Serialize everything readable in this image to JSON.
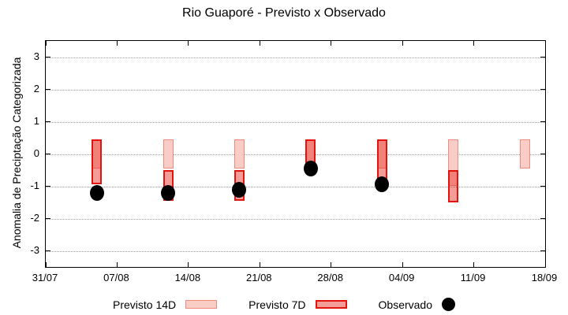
{
  "chart_data": {
    "type": "bar",
    "subtype": "range-bars-with-scatter",
    "title": "Rio Guaporé - Previsto x Observado",
    "xlabel": "",
    "ylabel": "Anomalia de Preciptação Categorizada",
    "ylim": [
      -3.5,
      3.5
    ],
    "yticks": [
      3,
      2,
      1,
      0,
      -1,
      -2,
      -3
    ],
    "grid": "horizontal-dotted",
    "grid_color": "#999999",
    "background": "#ffffff",
    "x_axis": {
      "tick_labels": [
        "31/07",
        "07/08",
        "14/08",
        "21/08",
        "28/08",
        "04/09",
        "11/09",
        "18/09"
      ],
      "tick_day_offsets": [
        0,
        7,
        14,
        21,
        28,
        35,
        42,
        49
      ],
      "range_days": [
        0,
        49
      ]
    },
    "bar_dates": [
      "05/08",
      "12/08",
      "19/08",
      "26/08",
      "02/09",
      "09/09",
      "16/09"
    ],
    "series": [
      {
        "name": "Previsto 14D",
        "type": "range-bar",
        "fill": "#f9cdc6",
        "border": "#f08a7a",
        "points": [
          {
            "day": 5,
            "date": "05/08",
            "low": -0.45,
            "high": 0.45
          },
          {
            "day": 12,
            "date": "12/08",
            "low": -0.45,
            "high": 0.45
          },
          {
            "day": 19,
            "date": "19/08",
            "low": -0.45,
            "high": 0.45
          },
          {
            "day": 26,
            "date": "26/08",
            "low": -0.45,
            "high": 0.45
          },
          {
            "day": 33,
            "date": "02/09",
            "low": -0.45,
            "high": 0.45
          },
          {
            "day": 40,
            "date": "09/09",
            "low": -1.0,
            "high": 0.45
          },
          {
            "day": 47,
            "date": "16/09",
            "low": -0.45,
            "high": 0.45
          }
        ]
      },
      {
        "name": "Previsto 7D",
        "type": "range-bar",
        "fill": "rgba(232,48,40,0.48)",
        "border": "#e3140d",
        "points": [
          {
            "day": 5,
            "date": "05/08",
            "low": -0.95,
            "high": 0.45
          },
          {
            "day": 12,
            "date": "12/08",
            "low": -1.45,
            "high": -0.5
          },
          {
            "day": 19,
            "date": "19/08",
            "low": -1.45,
            "high": -0.5
          },
          {
            "day": 26,
            "date": "26/08",
            "low": -0.45,
            "high": 0.45
          },
          {
            "day": 33,
            "date": "02/09",
            "low": -0.8,
            "high": 0.45
          },
          {
            "day": 40,
            "date": "09/09",
            "low": -1.5,
            "high": -0.5
          }
        ]
      },
      {
        "name": "Observado",
        "type": "scatter",
        "color": "#000000",
        "points": [
          {
            "day": 5,
            "date": "05/08",
            "value": -1.2
          },
          {
            "day": 12,
            "date": "12/08",
            "value": -1.2
          },
          {
            "day": 19,
            "date": "19/08",
            "value": -1.1
          },
          {
            "day": 26,
            "date": "26/08",
            "value": -0.45
          },
          {
            "day": 33,
            "date": "02/09",
            "value": -0.95
          }
        ]
      }
    ],
    "legend": {
      "position": "bottom-center",
      "entries": [
        "Previsto 14D",
        "Previsto 7D",
        "Observado"
      ]
    }
  }
}
